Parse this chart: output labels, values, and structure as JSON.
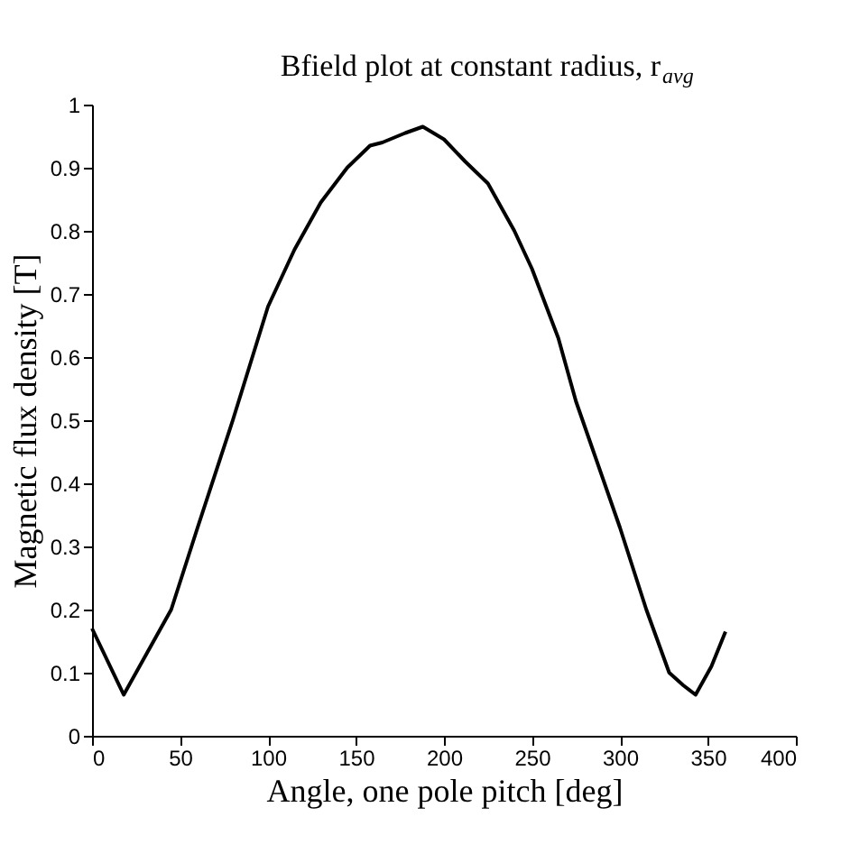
{
  "chart_data": {
    "type": "line",
    "title": "Bfield plot at constant radius, r$_{avg}$",
    "xlabel": "Angle, one pole pitch [deg]",
    "ylabel": "Magnetic flux density [T]",
    "x": [
      0,
      18,
      35,
      45,
      60,
      80,
      100,
      115,
      130,
      145,
      158,
      165,
      178,
      188,
      200,
      212,
      225,
      240,
      250,
      265,
      275,
      285,
      300,
      315,
      328,
      336,
      343,
      352,
      360
    ],
    "series": [
      {
        "color": "#000000",
        "values": [
          0.17,
          0.065,
          0.15,
          0.2,
          0.33,
          0.5,
          0.68,
          0.77,
          0.845,
          0.9,
          0.935,
          0.94,
          0.955,
          0.965,
          0.945,
          0.91,
          0.875,
          0.8,
          0.74,
          0.63,
          0.53,
          0.45,
          0.33,
          0.2,
          0.1,
          0.08,
          0.065,
          0.11,
          0.165
        ]
      }
    ],
    "xlim": [
      0,
      400
    ],
    "xticks": [
      0,
      50,
      100,
      150,
      200,
      250,
      300,
      350,
      400
    ],
    "ylim": [
      0,
      1
    ],
    "yticks": [
      0,
      0.1,
      0.2,
      0.3,
      0.4,
      0.5,
      0.6,
      0.7,
      0.8,
      0.9,
      1
    ],
    "grid": false
  }
}
